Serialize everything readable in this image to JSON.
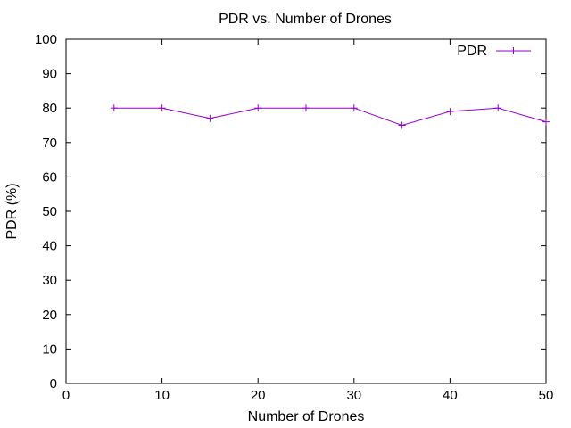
{
  "chart_data": {
    "type": "line",
    "title": "PDR vs. Number of Drones",
    "xlabel": "Number of Drones",
    "ylabel": "PDR (%)",
    "xlim": [
      0,
      50
    ],
    "ylim": [
      0,
      100
    ],
    "x_ticks": [
      0,
      10,
      20,
      30,
      40,
      50
    ],
    "y_ticks": [
      0,
      10,
      20,
      30,
      40,
      50,
      60,
      70,
      80,
      90,
      100
    ],
    "grid": false,
    "legend_position": "top-right",
    "series": [
      {
        "name": "PDR",
        "color": "#9400d3",
        "marker": "plus",
        "x": [
          5,
          10,
          15,
          20,
          25,
          30,
          35,
          40,
          45,
          50
        ],
        "y": [
          80,
          80,
          77,
          80,
          80,
          80,
          75,
          79,
          80,
          76
        ]
      }
    ]
  }
}
